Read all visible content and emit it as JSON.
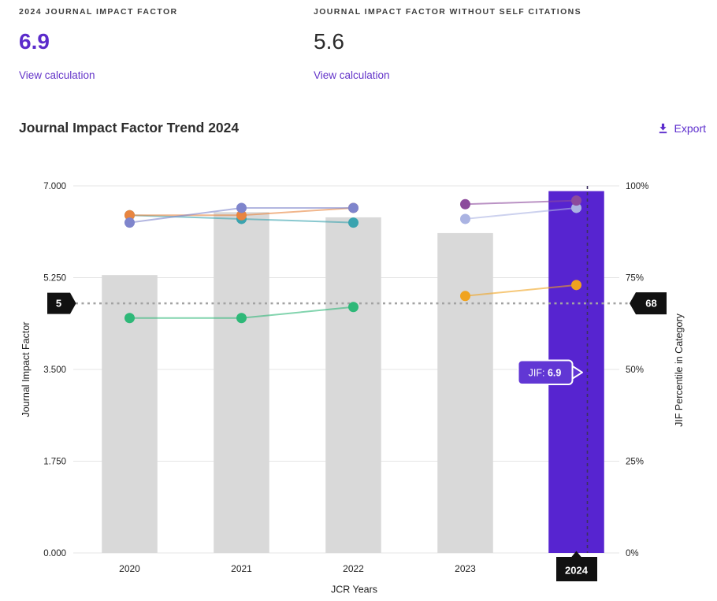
{
  "metrics": {
    "jif": {
      "label": "2024 JOURNAL IMPACT FACTOR",
      "value": "6.9",
      "link_label": "View calculation"
    },
    "jif_without_self": {
      "label": "JOURNAL IMPACT FACTOR WITHOUT SELF CITATIONS",
      "value": "5.6",
      "link_label": "View calculation"
    }
  },
  "trend_section": {
    "title": "Journal Impact Factor Trend 2024",
    "export_label": "Export"
  },
  "colors": {
    "accent_purple": "#5c2dcd",
    "bar_gray": "#d9d9d9",
    "bar_highlight": "#5724d0",
    "tooltip_purple": "#6137d4",
    "flag_black": "#111111",
    "gridline": "#e4e4e4",
    "tick_text": "#1f1f1f",
    "dotted_line": "#a3a3a3",
    "crosshair": "#3c3060"
  },
  "chart_data": {
    "type": "bar+line",
    "title": "Journal Impact Factor Trend 2024",
    "categories": [
      "2020",
      "2021",
      "2022",
      "2023",
      "2024"
    ],
    "bars": {
      "name": "Journal Impact Factor (left axis)",
      "values": [
        5.3,
        6.5,
        6.4,
        6.1,
        6.9
      ],
      "selected_index": 4
    },
    "line_series": [
      {
        "name": "percentile-teal",
        "color": "#3aa3af",
        "values": [
          92,
          91,
          90,
          null,
          null
        ]
      },
      {
        "name": "percentile-orange",
        "color": "#e88540",
        "values": [
          92,
          92,
          94,
          null,
          null
        ]
      },
      {
        "name": "percentile-periwinkle",
        "color": "#7f85cc",
        "values": [
          90,
          94,
          94,
          null,
          null
        ]
      },
      {
        "name": "percentile-green",
        "color": "#2eb878",
        "values": [
          64,
          64,
          67,
          null,
          null
        ]
      },
      {
        "name": "percentile-lavender",
        "color": "#aab3e2",
        "values": [
          null,
          null,
          null,
          91,
          94
        ]
      },
      {
        "name": "percentile-plum",
        "color": "#8c4a9c",
        "values": [
          null,
          null,
          null,
          95,
          96
        ]
      },
      {
        "name": "percentile-yellow",
        "color": "#f0a31f",
        "values": [
          null,
          null,
          null,
          70,
          73
        ]
      }
    ],
    "left_axis": {
      "label": "Journal Impact Factor",
      "ticks": [
        "7.000",
        "5.250",
        "3.500",
        "1.750",
        "0.000"
      ],
      "min": 0,
      "max": 7
    },
    "right_axis": {
      "label": "JIF Percentile in Category",
      "ticks": [
        "100%",
        "75%",
        "50%",
        "25%",
        "0%"
      ],
      "min": 0,
      "max": 100
    },
    "x_axis": {
      "label": "JCR Years"
    },
    "threshold_line": {
      "percentile": 68,
      "left_flag_label": "5",
      "right_flag_label": "68"
    },
    "selected_year": {
      "label": "2024",
      "tooltip_label": "JIF:",
      "tooltip_value": "6.9"
    },
    "grid": true,
    "legend": "none"
  }
}
